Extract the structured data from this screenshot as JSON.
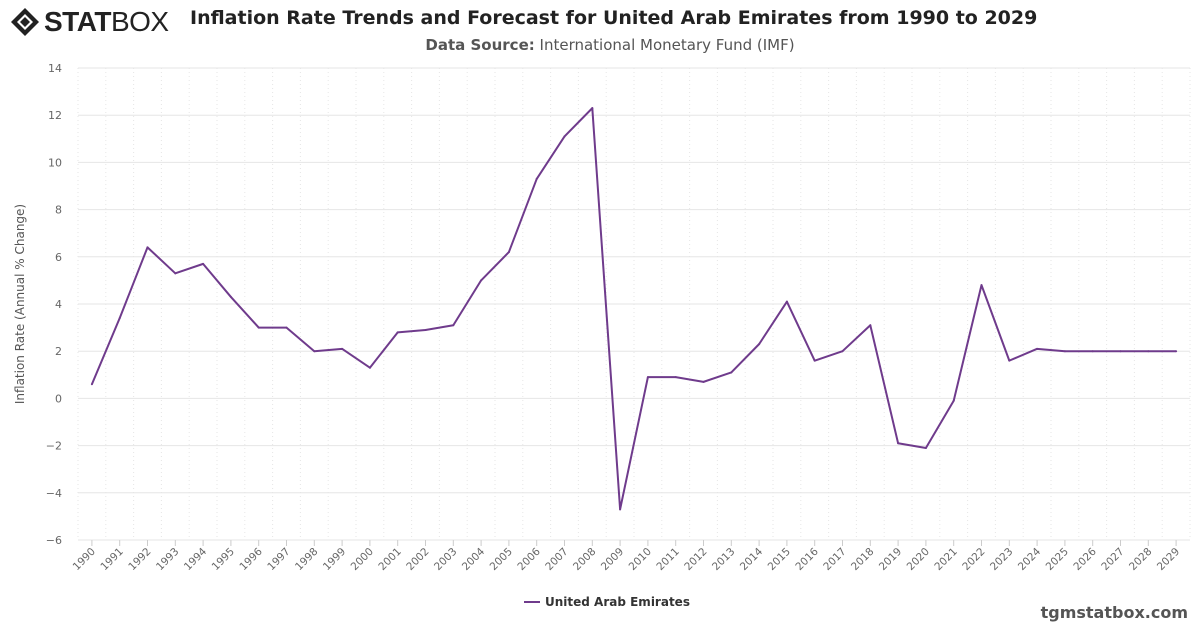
{
  "logo": {
    "text_bold": "STAT",
    "text_light": "BOX"
  },
  "title": "Inflation Rate Trends and Forecast for United Arab Emirates from 1990 to 2029",
  "subtitle": {
    "label": "Data Source:",
    "value": "International Monetary Fund (IMF)"
  },
  "watermark": "tgmstatbox.com",
  "chart_data": {
    "type": "line",
    "title": "Inflation Rate Trends and Forecast for United Arab Emirates from 1990 to 2029",
    "xlabel": "",
    "ylabel": "Inflation Rate (Annual % Change)",
    "ylim": [
      -6,
      14
    ],
    "yticks": [
      -6,
      -4,
      -2,
      0,
      2,
      4,
      6,
      8,
      10,
      12,
      14
    ],
    "grid": true,
    "legend": "bottom-center",
    "categories": [
      "1990",
      "1991",
      "1992",
      "1993",
      "1994",
      "1995",
      "1996",
      "1997",
      "1998",
      "1999",
      "2000",
      "2001",
      "2002",
      "2003",
      "2004",
      "2005",
      "2006",
      "2007",
      "2008",
      "2009",
      "2010",
      "2011",
      "2012",
      "2013",
      "2014",
      "2015",
      "2016",
      "2017",
      "2018",
      "2019",
      "2020",
      "2021",
      "2022",
      "2023",
      "2024",
      "2025",
      "2026",
      "2027",
      "2028",
      "2029"
    ],
    "series": [
      {
        "name": "United Arab Emirates",
        "color": "#6f3b8c",
        "values": [
          0.6,
          3.4,
          6.4,
          5.3,
          5.7,
          4.3,
          3.0,
          3.0,
          2.0,
          2.1,
          1.3,
          2.8,
          2.9,
          3.1,
          5.0,
          6.2,
          9.3,
          11.1,
          12.3,
          -4.7,
          0.9,
          0.9,
          0.7,
          1.1,
          2.3,
          4.1,
          1.6,
          2.0,
          3.1,
          -1.9,
          -2.1,
          -0.1,
          4.8,
          1.6,
          2.1,
          2.0,
          2.0,
          2.0,
          2.0,
          2.0
        ]
      }
    ]
  }
}
